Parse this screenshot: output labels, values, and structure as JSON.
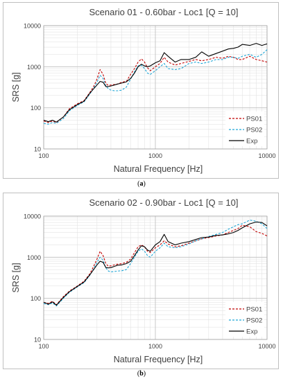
{
  "captions": {
    "a": "a",
    "b": "b"
  },
  "chart_data": [
    {
      "type": "line",
      "title": "Scenario 01 - 0.60bar - Loc1 [Q = 10]",
      "xlabel": "Natural Frequency [Hz]",
      "ylabel": "SRS [g]",
      "x_scale": "log",
      "y_scale": "log",
      "xlim": [
        100,
        10000
      ],
      "ylim": [
        10,
        10000
      ],
      "x_ticks": [
        "100",
        "1000",
        "10000"
      ],
      "y_ticks": [
        "10",
        "100",
        "1000",
        "10000"
      ],
      "grid": true,
      "legend_position": "bottom-right",
      "series": [
        {
          "name": "PS01",
          "color": "#c00000",
          "dash": "dashed",
          "x": [
            100,
            110,
            120,
            130,
            150,
            170,
            200,
            230,
            260,
            280,
            300,
            320,
            340,
            360,
            380,
            400,
            430,
            460,
            500,
            550,
            600,
            650,
            700,
            750,
            800,
            850,
            900,
            1000,
            1100,
            1200,
            1300,
            1500,
            1700,
            2000,
            2300,
            2600,
            3000,
            3500,
            4000,
            4500,
            5000,
            5500,
            6000,
            7000,
            8000,
            9000,
            10000
          ],
          "y": [
            48,
            44,
            48,
            44,
            60,
            95,
            125,
            150,
            240,
            330,
            500,
            850,
            650,
            390,
            350,
            360,
            370,
            380,
            420,
            440,
            650,
            900,
            1300,
            1550,
            1300,
            950,
            800,
            1000,
            1200,
            1700,
            1300,
            1100,
            1200,
            1350,
            1500,
            1400,
            1500,
            1700,
            1600,
            1800,
            1700,
            1500,
            1500,
            1800,
            1500,
            1400,
            1300
          ]
        },
        {
          "name": "PS02",
          "color": "#1fa6d6",
          "dash": "dashed",
          "x": [
            100,
            110,
            120,
            130,
            150,
            170,
            200,
            230,
            260,
            280,
            300,
            320,
            340,
            360,
            380,
            400,
            430,
            460,
            500,
            550,
            600,
            650,
            700,
            750,
            800,
            850,
            900,
            1000,
            1100,
            1200,
            1300,
            1500,
            1700,
            2000,
            2300,
            2600,
            3000,
            3500,
            4000,
            4500,
            5000,
            5500,
            6000,
            7000,
            8000,
            9000,
            10000
          ],
          "y": [
            42,
            40,
            44,
            42,
            55,
            85,
            115,
            140,
            220,
            300,
            420,
            620,
            520,
            340,
            290,
            270,
            260,
            260,
            270,
            320,
            500,
            750,
            1050,
            1100,
            900,
            700,
            650,
            800,
            1000,
            1200,
            900,
            850,
            900,
            1200,
            1300,
            1200,
            1300,
            1500,
            1500,
            1700,
            1700,
            1600,
            1800,
            2000,
            1700,
            2000,
            2600
          ]
        },
        {
          "name": "Exp",
          "color": "#000000",
          "dash": "solid",
          "x": [
            100,
            110,
            120,
            130,
            150,
            170,
            200,
            230,
            260,
            280,
            300,
            320,
            340,
            360,
            380,
            400,
            430,
            460,
            500,
            550,
            600,
            650,
            700,
            750,
            800,
            850,
            900,
            1000,
            1100,
            1200,
            1300,
            1500,
            1700,
            2000,
            2300,
            2600,
            3000,
            3500,
            4000,
            4500,
            5000,
            5500,
            6000,
            7000,
            8000,
            9000,
            10000
          ],
          "y": [
            50,
            46,
            50,
            45,
            60,
            90,
            120,
            145,
            230,
            290,
            360,
            440,
            420,
            330,
            330,
            340,
            360,
            380,
            400,
            430,
            520,
            700,
            1000,
            1150,
            1050,
            1000,
            1050,
            1250,
            1400,
            2200,
            1800,
            1300,
            1500,
            1500,
            1700,
            2300,
            1800,
            2100,
            2400,
            2700,
            2800,
            3000,
            3500,
            3300,
            3700,
            3300,
            3600
          ]
        }
      ]
    },
    {
      "type": "line",
      "title": "Scenario 02 - 0.90bar - Loc1 [Q = 10]",
      "xlabel": "Natural Frequency [Hz]",
      "ylabel": "SRS [g]",
      "x_scale": "log",
      "y_scale": "log",
      "xlim": [
        100,
        10000
      ],
      "ylim": [
        10,
        10000
      ],
      "x_ticks": [
        "100",
        "1000",
        "10000"
      ],
      "y_ticks": [
        "10",
        "100",
        "1000",
        "10000"
      ],
      "grid": true,
      "legend_position": "bottom-right",
      "series": [
        {
          "name": "PS01",
          "color": "#c00000",
          "dash": "dashed",
          "x": [
            100,
            110,
            120,
            130,
            150,
            170,
            200,
            230,
            260,
            280,
            300,
            320,
            340,
            360,
            380,
            400,
            430,
            460,
            500,
            550,
            600,
            650,
            700,
            750,
            800,
            850,
            900,
            1000,
            1100,
            1200,
            1300,
            1500,
            1700,
            2000,
            2300,
            2600,
            3000,
            3500,
            4000,
            4500,
            5000,
            5500,
            6000,
            7000,
            8000,
            9000,
            10000
          ],
          "y": [
            80,
            75,
            85,
            70,
            110,
            150,
            200,
            260,
            400,
            600,
            900,
            1400,
            1100,
            700,
            600,
            620,
            650,
            680,
            700,
            750,
            900,
            1300,
            1800,
            2000,
            1800,
            1400,
            1300,
            1700,
            2000,
            2500,
            2100,
            1800,
            1900,
            2200,
            2500,
            2800,
            3000,
            3300,
            3500,
            4000,
            4500,
            5000,
            6000,
            5500,
            4200,
            3800,
            3300
          ]
        },
        {
          "name": "PS02",
          "color": "#1fa6d6",
          "dash": "dashed",
          "x": [
            100,
            110,
            120,
            130,
            150,
            170,
            200,
            230,
            260,
            280,
            300,
            320,
            340,
            360,
            380,
            400,
            430,
            460,
            500,
            550,
            600,
            650,
            700,
            750,
            800,
            850,
            900,
            1000,
            1100,
            1200,
            1300,
            1500,
            1700,
            2000,
            2300,
            2600,
            3000,
            3500,
            4000,
            4500,
            5000,
            5500,
            6000,
            7000,
            8000,
            9000,
            10000
          ],
          "y": [
            75,
            70,
            78,
            65,
            100,
            140,
            190,
            240,
            370,
            520,
            750,
            1000,
            850,
            550,
            460,
            440,
            450,
            460,
            470,
            500,
            700,
            1000,
            1400,
            1600,
            1400,
            1100,
            1000,
            1400,
            1700,
            2200,
            1800,
            1700,
            1800,
            2100,
            2500,
            2800,
            3200,
            3600,
            4000,
            4800,
            5500,
            6200,
            6500,
            8000,
            7500,
            6500,
            5000
          ]
        },
        {
          "name": "Exp",
          "color": "#000000",
          "dash": "solid",
          "x": [
            100,
            110,
            120,
            130,
            150,
            170,
            200,
            230,
            260,
            280,
            300,
            320,
            340,
            360,
            380,
            400,
            430,
            460,
            500,
            550,
            600,
            650,
            700,
            750,
            800,
            850,
            900,
            1000,
            1100,
            1200,
            1300,
            1500,
            1700,
            2000,
            2300,
            2600,
            3000,
            3500,
            4000,
            4500,
            5000,
            5500,
            6000,
            7000,
            8000,
            9000,
            10000
          ],
          "y": [
            80,
            72,
            82,
            68,
            105,
            145,
            195,
            250,
            380,
            500,
            650,
            800,
            750,
            560,
            550,
            560,
            600,
            640,
            650,
            700,
            800,
            1100,
            1500,
            1900,
            1800,
            1500,
            1400,
            2000,
            2400,
            3600,
            2400,
            2000,
            2200,
            2400,
            2700,
            3000,
            3100,
            3400,
            3500,
            3700,
            4000,
            4500,
            5200,
            6500,
            7200,
            7000,
            5800
          ]
        }
      ]
    }
  ]
}
